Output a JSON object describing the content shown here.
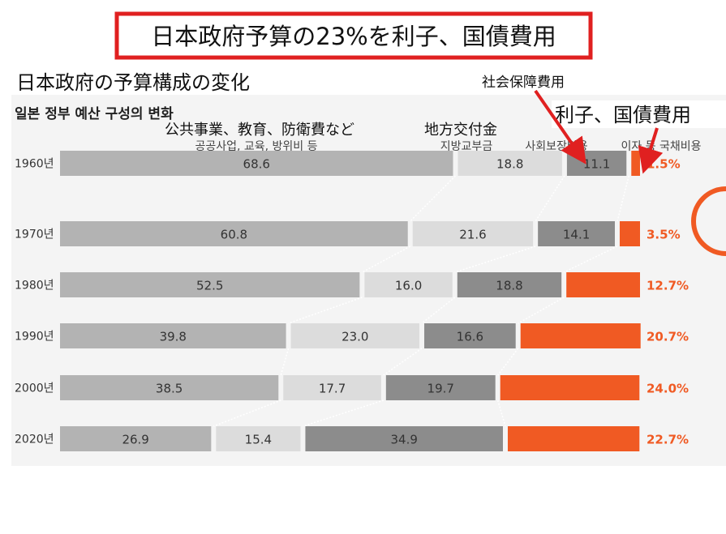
{
  "banner_title": "日本政府予算の23%を利子、国債費用",
  "subtitle_ja": "日本政府の予算構成の変化",
  "chart_title_ko": "일본 정부 예산 구성의 변화",
  "annotations": {
    "public_ja": "公共事業、教育、防衛費など",
    "public_ko": "공공사업, 교육, 방위비 등",
    "local_ja": "地方交付金",
    "local_ko": "지방교부금",
    "social_ja": "社会保障費用",
    "social_ko": "사회보장비용",
    "interest_ja": "利子、国債費用",
    "interest_ko": "이자 등 국채비용"
  },
  "colors": {
    "public": "#b3b3b3",
    "local": "#dcdcdc",
    "social": "#8c8c8c",
    "interest": "#f05a23",
    "banner_border": "#e02020",
    "arrow": "#e02020",
    "panel": "#f4f4f4"
  },
  "chart_data": {
    "type": "bar",
    "orientation": "horizontal-stacked",
    "title": "일본 정부 예산 구성의 변화",
    "categories": [
      "1960년",
      "1970년",
      "1980년",
      "1990년",
      "2000년",
      "2020년"
    ],
    "series": [
      {
        "name": "공공사업, 교육, 방위비 등",
        "values": [
          68.6,
          60.8,
          52.5,
          39.8,
          38.5,
          26.9
        ]
      },
      {
        "name": "지방교부금",
        "values": [
          18.8,
          21.6,
          16.0,
          23.0,
          17.7,
          15.4
        ]
      },
      {
        "name": "사회보장비용",
        "values": [
          11.1,
          14.1,
          18.8,
          16.6,
          19.7,
          34.9
        ]
      },
      {
        "name": "이자 등 국채비용",
        "values": [
          1.5,
          3.5,
          12.7,
          20.7,
          24.0,
          22.7
        ]
      }
    ],
    "value_labels": [
      [
        "68.6",
        "18.8",
        "11.1",
        "1.5%"
      ],
      [
        "60.8",
        "21.6",
        "14.1",
        "3.5%"
      ],
      [
        "52.5",
        "16.0",
        "18.8",
        "12.7%"
      ],
      [
        "39.8",
        "23.0",
        "16.6",
        "20.7%"
      ],
      [
        "38.5",
        "17.7",
        "19.7",
        "24.0%"
      ],
      [
        "26.9",
        "15.4",
        "34.9",
        "22.7%"
      ]
    ],
    "xlim": [
      0,
      100
    ]
  }
}
